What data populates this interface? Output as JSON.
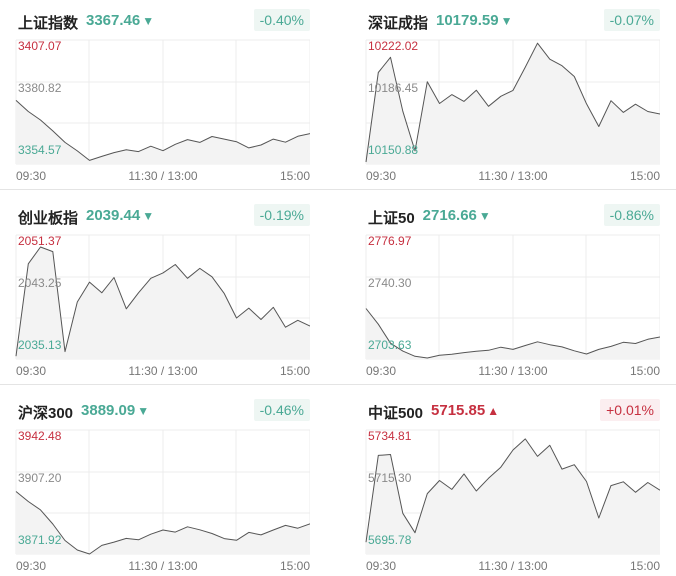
{
  "panels": [
    {
      "name": "上证指数",
      "price": "3367.46",
      "direction": "down",
      "change": "-0.40%",
      "high_label": "3407.07",
      "mid_label": "3380.82",
      "low_label": "3354.57",
      "time_labels": [
        "09:30",
        "11:30 / 13:00",
        "15:00"
      ]
    },
    {
      "name": "深证成指",
      "price": "10179.59",
      "direction": "down",
      "change": "-0.07%",
      "high_label": "10222.02",
      "mid_label": "10186.45",
      "low_label": "10150.88",
      "time_labels": [
        "09:30",
        "11:30 / 13:00",
        "15:00"
      ]
    },
    {
      "name": "创业板指",
      "price": "2039.44",
      "direction": "down",
      "change": "-0.19%",
      "high_label": "2051.37",
      "mid_label": "2043.25",
      "low_label": "2035.13",
      "time_labels": [
        "09:30",
        "11:30 / 13:00",
        "15:00"
      ]
    },
    {
      "name": "上证50",
      "price": "2716.66",
      "direction": "down",
      "change": "-0.86%",
      "high_label": "2776.97",
      "mid_label": "2740.30",
      "low_label": "2703.63",
      "time_labels": [
        "09:30",
        "11:30 / 13:00",
        "15:00"
      ]
    },
    {
      "name": "沪深300",
      "price": "3889.09",
      "direction": "down",
      "change": "-0.46%",
      "high_label": "3942.48",
      "mid_label": "3907.20",
      "low_label": "3871.92",
      "time_labels": [
        "09:30",
        "11:30 / 13:00",
        "15:00"
      ]
    },
    {
      "name": "中证500",
      "price": "5715.85",
      "direction": "up",
      "change": "+0.01%",
      "high_label": "5734.81",
      "mid_label": "5715.30",
      "low_label": "5695.78",
      "time_labels": [
        "09:30",
        "11:30 / 13:00",
        "15:00"
      ]
    }
  ],
  "colors": {
    "up": "#c63040",
    "down": "#4aa995",
    "line": "#555555",
    "fill": "#f3f3f3",
    "grid": "#ececec"
  },
  "chart_data": [
    {
      "type": "line",
      "title": "上证指数",
      "ylim": [
        3354.57,
        3407.07
      ],
      "x": [
        0,
        10,
        20,
        30,
        40,
        50,
        60,
        70,
        80,
        90,
        100,
        110,
        120,
        130,
        140,
        150,
        160,
        170,
        180,
        190,
        200,
        210,
        220,
        230,
        240
      ],
      "values": [
        3381.5,
        3376.8,
        3373.2,
        3368.6,
        3363.7,
        3360.1,
        3356.1,
        3357.8,
        3359.4,
        3360.6,
        3359.8,
        3362.1,
        3360.2,
        3362.9,
        3364.9,
        3363.7,
        3366.2,
        3365.1,
        3364.0,
        3361.4,
        3362.6,
        3365.1,
        3363.8,
        3366.3,
        3367.46
      ]
    },
    {
      "type": "line",
      "title": "深证成指",
      "ylim": [
        10150.88,
        10222.02
      ],
      "x": [
        0,
        10,
        20,
        30,
        40,
        50,
        60,
        70,
        80,
        90,
        100,
        110,
        120,
        130,
        140,
        150,
        160,
        170,
        180,
        190,
        200,
        210,
        220,
        230,
        240
      ],
      "values": [
        10152.0,
        10203.4,
        10212.1,
        10181.2,
        10158.4,
        10198.1,
        10185.6,
        10190.7,
        10186.8,
        10193.2,
        10184.0,
        10189.7,
        10193.1,
        10206.5,
        10220.2,
        10211.0,
        10207.3,
        10201.1,
        10185.4,
        10172.4,
        10187.2,
        10180.5,
        10185.2,
        10181.0,
        10179.59
      ]
    },
    {
      "type": "line",
      "title": "创业板指",
      "ylim": [
        2035.13,
        2051.37
      ],
      "x": [
        0,
        10,
        20,
        30,
        40,
        50,
        60,
        70,
        80,
        90,
        100,
        110,
        120,
        130,
        140,
        150,
        160,
        170,
        180,
        190,
        200,
        210,
        220,
        230,
        240
      ],
      "values": [
        2035.5,
        2047.6,
        2049.8,
        2049.2,
        2036.1,
        2042.6,
        2045.2,
        2043.8,
        2045.8,
        2041.7,
        2043.8,
        2045.7,
        2046.4,
        2047.5,
        2045.7,
        2047.0,
        2045.9,
        2043.7,
        2040.5,
        2041.8,
        2040.3,
        2041.9,
        2039.3,
        2040.2,
        2039.44
      ]
    },
    {
      "type": "line",
      "title": "上证50",
      "ylim": [
        2703.63,
        2776.97
      ],
      "x": [
        0,
        10,
        20,
        30,
        40,
        50,
        60,
        70,
        80,
        90,
        100,
        110,
        120,
        130,
        140,
        150,
        160,
        170,
        180,
        190,
        200,
        210,
        220,
        230,
        240
      ],
      "values": [
        2733.5,
        2724.2,
        2713.0,
        2708.3,
        2705.2,
        2704.2,
        2705.8,
        2706.4,
        2707.4,
        2708.2,
        2708.8,
        2710.6,
        2709.3,
        2711.6,
        2713.8,
        2712.1,
        2710.8,
        2708.5,
        2706.6,
        2709.3,
        2711.1,
        2713.5,
        2712.8,
        2715.3,
        2716.66
      ]
    },
    {
      "type": "line",
      "title": "沪深300",
      "ylim": [
        3871.92,
        3942.48
      ],
      "x": [
        0,
        10,
        20,
        30,
        40,
        50,
        60,
        70,
        80,
        90,
        100,
        110,
        120,
        130,
        140,
        150,
        160,
        170,
        180,
        190,
        200,
        210,
        220,
        230,
        240
      ],
      "values": [
        3907.5,
        3901.8,
        3897.0,
        3889.0,
        3879.6,
        3874.2,
        3871.9,
        3876.8,
        3878.7,
        3880.8,
        3880.0,
        3883.2,
        3885.6,
        3884.4,
        3887.4,
        3885.7,
        3883.6,
        3880.7,
        3879.7,
        3884.2,
        3882.8,
        3885.6,
        3888.2,
        3886.6,
        3889.09
      ]
    },
    {
      "type": "line",
      "title": "中证500",
      "ylim": [
        5695.78,
        5734.81
      ],
      "x": [
        0,
        10,
        20,
        30,
        40,
        50,
        60,
        70,
        80,
        90,
        100,
        110,
        120,
        130,
        140,
        150,
        160,
        170,
        180,
        190,
        200,
        210,
        220,
        230,
        240
      ],
      "values": [
        5699.5,
        5726.8,
        5727.1,
        5708.6,
        5702.5,
        5714.8,
        5718.9,
        5716.1,
        5721.0,
        5715.6,
        5719.6,
        5723.1,
        5728.5,
        5732.0,
        5726.5,
        5730.0,
        5722.5,
        5723.9,
        5718.6,
        5707.1,
        5717.3,
        5718.5,
        5715.2,
        5718.3,
        5715.85
      ]
    }
  ]
}
